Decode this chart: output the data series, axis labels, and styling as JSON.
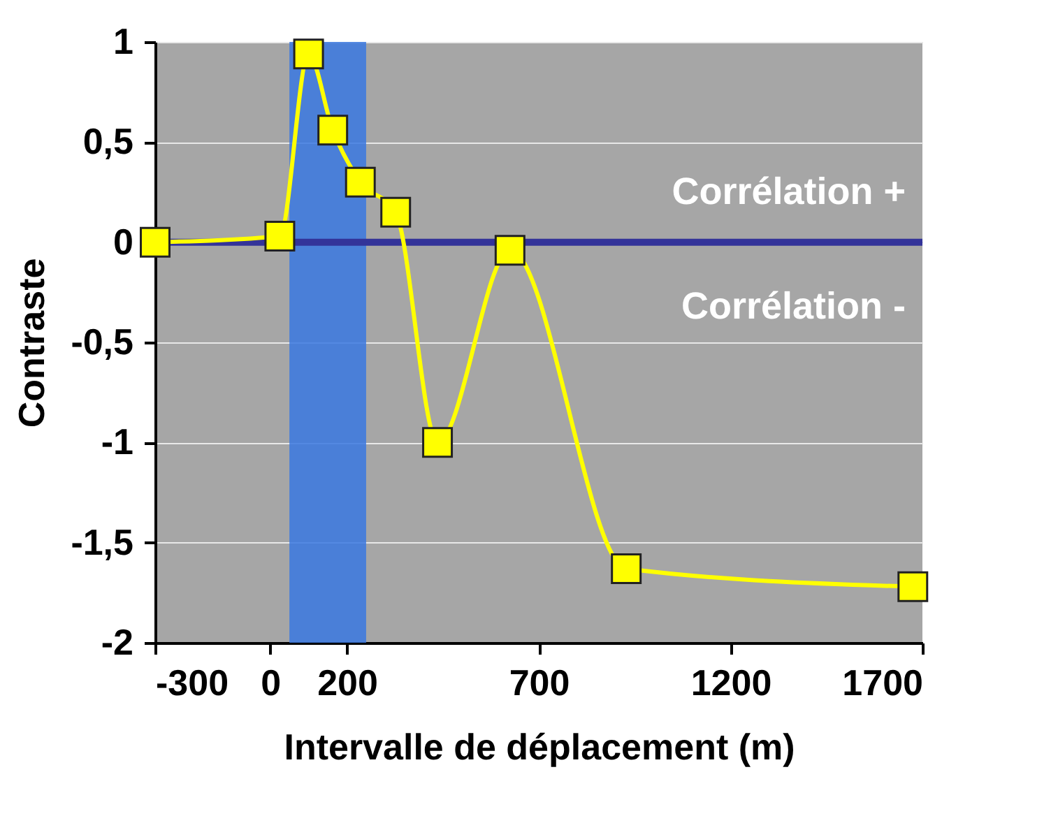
{
  "chart_data": {
    "type": "line",
    "xlabel": "Intervalle de déplacement (m)",
    "ylabel": "Contraste",
    "x": [
      -300,
      25,
      100,
      163,
      235,
      327,
      436,
      625,
      928,
      1675
    ],
    "series": [
      {
        "color": "#ffff00",
        "values": [
          0.0,
          0.03,
          0.94,
          0.56,
          0.3,
          0.15,
          -1.0,
          -0.04,
          -1.63,
          -1.72
        ]
      }
    ],
    "xlim": [
      -300,
      1700
    ],
    "xticks": [
      -300,
      0,
      200,
      700,
      1200,
      1700
    ],
    "ylim": [
      -2,
      1
    ],
    "yticks": [
      -2,
      {
        "value": -1.5,
        "label": "-1,5"
      },
      -1,
      {
        "value": -0.5,
        "label": "-0,5"
      },
      0,
      {
        "value": 0.5,
        "label": "0,5"
      },
      1
    ],
    "ref_lines": [
      {
        "axis": "y",
        "value": 0,
        "color": "#333399"
      }
    ],
    "bands": [
      {
        "axis": "x",
        "from": 50,
        "to": 250,
        "color": "#3a78e0"
      }
    ],
    "annotations": [
      "Corrélation +",
      "Corrélation -"
    ],
    "grid": "y",
    "marker": "square",
    "line_style": "solid"
  }
}
